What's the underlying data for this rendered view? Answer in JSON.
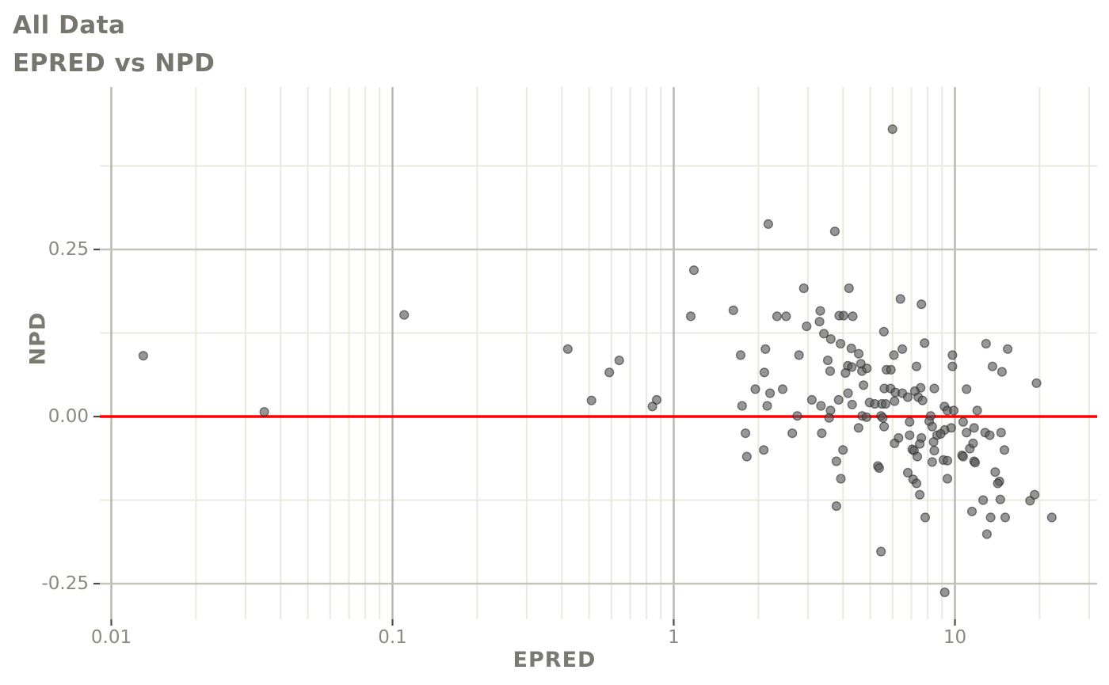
{
  "title": {
    "line1": "All Data",
    "line2": "EPRED vs NPD"
  },
  "axes": {
    "x": {
      "label": "EPRED",
      "scale": "log10",
      "ticks": [
        {
          "value": 0.01,
          "label": "0.01"
        },
        {
          "value": 0.1,
          "label": "0.1"
        },
        {
          "value": 1,
          "label": "1"
        },
        {
          "value": 10,
          "label": "10"
        }
      ],
      "minor_ticks": [
        0.02,
        0.03,
        0.04,
        0.05,
        0.06,
        0.07,
        0.08,
        0.09,
        0.2,
        0.3,
        0.4,
        0.5,
        0.6,
        0.7,
        0.8,
        0.9,
        2,
        3,
        4,
        5,
        6,
        7,
        8,
        9,
        20,
        30
      ]
    },
    "y": {
      "label": "NPD",
      "scale": "linear",
      "ticks": [
        {
          "value": 0.25,
          "label": "0.25"
        },
        {
          "value": 0.0,
          "label": "0.00"
        },
        {
          "value": -0.25,
          "label": "-0.25"
        }
      ],
      "minor_ticks": [
        0.375,
        0.125,
        -0.125
      ]
    }
  },
  "reference_line": {
    "y": 0,
    "color": "#ff0000"
  },
  "style": {
    "background": "#ffffff",
    "minor_grid_color": "#e9e9e0",
    "major_grid_color": "#c3c3ba",
    "major_vgrid_color": "#b6b6ae",
    "tick_mark_color": "#4c4b47",
    "point_fill": "#555555",
    "point_stroke": "#222222",
    "text_color": "#8a8982",
    "title_color": "#76756e"
  },
  "chart_data": {
    "type": "scatter",
    "title": "All Data",
    "subtitle": "EPRED vs NPD",
    "xlabel": "EPRED",
    "ylabel": "NPD",
    "x_scale": "log10",
    "xlim": [
      0.0091,
      32
    ],
    "ylim": [
      -0.303,
      0.493
    ],
    "grid": true,
    "legend": false,
    "reference_line_y": 0,
    "points": [
      [
        0.013,
        0.091
      ],
      [
        0.035,
        0.007
      ],
      [
        0.11,
        0.152
      ],
      [
        0.42,
        0.101
      ],
      [
        0.64,
        0.084
      ],
      [
        0.59,
        0.066
      ],
      [
        0.51,
        0.024
      ],
      [
        0.87,
        0.025
      ],
      [
        0.84,
        0.015
      ],
      [
        1.18,
        0.219
      ],
      [
        1.15,
        0.15
      ],
      [
        6.0,
        0.43
      ],
      [
        2.17,
        0.288
      ],
      [
        3.74,
        0.277
      ],
      [
        2.9,
        0.192
      ],
      [
        4.2,
        0.192
      ],
      [
        1.63,
        0.159
      ],
      [
        2.33,
        0.15
      ],
      [
        2.51,
        0.15
      ],
      [
        3.32,
        0.158
      ],
      [
        3.88,
        0.151
      ],
      [
        4.02,
        0.151
      ],
      [
        4.33,
        0.15
      ],
      [
        2.97,
        0.135
      ],
      [
        3.3,
        0.142
      ],
      [
        3.42,
        0.124
      ],
      [
        3.62,
        0.116
      ],
      [
        3.92,
        0.109
      ],
      [
        5.59,
        0.127
      ],
      [
        4.28,
        0.102
      ],
      [
        1.73,
        0.092
      ],
      [
        2.12,
        0.101
      ],
      [
        2.79,
        0.092
      ],
      [
        4.55,
        0.094
      ],
      [
        4.63,
        0.079
      ],
      [
        4.16,
        0.076
      ],
      [
        4.3,
        0.074
      ],
      [
        3.53,
        0.084
      ],
      [
        3.6,
        0.068
      ],
      [
        4.08,
        0.065
      ],
      [
        4.67,
        0.068
      ],
      [
        4.86,
        0.072
      ],
      [
        2.1,
        0.066
      ],
      [
        5.71,
        0.07
      ],
      [
        5.92,
        0.07
      ],
      [
        6.07,
        0.092
      ],
      [
        4.73,
        0.047
      ],
      [
        1.95,
        0.041
      ],
      [
        2.2,
        0.035
      ],
      [
        2.44,
        0.041
      ],
      [
        3.1,
        0.025
      ],
      [
        4.17,
        0.035
      ],
      [
        5.61,
        0.042
      ],
      [
        5.9,
        0.042
      ],
      [
        1.75,
        0.016
      ],
      [
        2.15,
        0.016
      ],
      [
        3.34,
        0.016
      ],
      [
        3.61,
        0.009
      ],
      [
        3.86,
        0.025
      ],
      [
        4.31,
        0.018
      ],
      [
        4.97,
        0.021
      ],
      [
        5.19,
        0.019
      ],
      [
        5.5,
        0.019
      ],
      [
        5.67,
        0.019
      ],
      [
        2.75,
        0.001
      ],
      [
        3.57,
        -0.002
      ],
      [
        4.68,
        0.001
      ],
      [
        4.85,
        -0.001
      ],
      [
        5.46,
        0.001
      ],
      [
        5.54,
        -0.002
      ],
      [
        1.8,
        -0.025
      ],
      [
        2.64,
        -0.025
      ],
      [
        3.36,
        -0.025
      ],
      [
        4.54,
        -0.017
      ],
      [
        5.6,
        -0.015
      ],
      [
        6.4,
        0.176
      ],
      [
        7.6,
        0.168
      ],
      [
        7.8,
        0.11
      ],
      [
        6.5,
        0.101
      ],
      [
        7.3,
        0.075
      ],
      [
        9.8,
        0.092
      ],
      [
        9.8,
        0.075
      ],
      [
        12.9,
        0.109
      ],
      [
        15.4,
        0.101
      ],
      [
        13.6,
        0.075
      ],
      [
        14.7,
        0.067
      ],
      [
        19.5,
        0.05
      ],
      [
        7.55,
        0.043
      ],
      [
        8.45,
        0.042
      ],
      [
        11.0,
        0.041
      ],
      [
        6.14,
        0.036
      ],
      [
        6.5,
        0.035
      ],
      [
        7.2,
        0.038
      ],
      [
        7.4,
        0.029
      ],
      [
        7.67,
        0.024
      ],
      [
        6.8,
        0.029
      ],
      [
        6.1,
        0.023
      ],
      [
        9.18,
        0.015
      ],
      [
        9.4,
        0.009
      ],
      [
        9.9,
        0.009
      ],
      [
        12.0,
        0.009
      ],
      [
        8.2,
        0.001
      ],
      [
        8.1,
        -0.007
      ],
      [
        6.9,
        -0.008
      ],
      [
        10.7,
        -0.008
      ],
      [
        8.3,
        -0.015
      ],
      [
        9.2,
        -0.02
      ],
      [
        8.64,
        -0.028
      ],
      [
        8.9,
        -0.026
      ],
      [
        9.7,
        -0.017
      ],
      [
        11.0,
        -0.024
      ],
      [
        11.7,
        -0.017
      ],
      [
        12.8,
        -0.024
      ],
      [
        13.3,
        -0.028
      ],
      [
        14.6,
        -0.024
      ],
      [
        6.9,
        -0.028
      ],
      [
        6.3,
        -0.032
      ],
      [
        7.6,
        -0.032
      ],
      [
        1.82,
        -0.06
      ],
      [
        2.09,
        -0.05
      ],
      [
        3.79,
        -0.067
      ],
      [
        4.0,
        -0.05
      ],
      [
        3.93,
        -0.093
      ],
      [
        5.32,
        -0.074
      ],
      [
        5.38,
        -0.077
      ],
      [
        3.79,
        -0.134
      ],
      [
        5.46,
        -0.202
      ],
      [
        6.1,
        -0.04
      ],
      [
        7.05,
        -0.049
      ],
      [
        7.15,
        -0.051
      ],
      [
        7.5,
        -0.041
      ],
      [
        8.4,
        -0.038
      ],
      [
        8.45,
        -0.051
      ],
      [
        7.35,
        -0.06
      ],
      [
        8.3,
        -0.068
      ],
      [
        9.1,
        -0.065
      ],
      [
        9.4,
        -0.066
      ],
      [
        6.8,
        -0.084
      ],
      [
        7.1,
        -0.094
      ],
      [
        7.3,
        -0.1
      ],
      [
        7.5,
        -0.117
      ],
      [
        9.4,
        -0.093
      ],
      [
        10.6,
        -0.058
      ],
      [
        10.7,
        -0.06
      ],
      [
        11.3,
        -0.048
      ],
      [
        11.6,
        -0.04
      ],
      [
        11.7,
        -0.067
      ],
      [
        11.8,
        -0.069
      ],
      [
        15.0,
        -0.05
      ],
      [
        13.9,
        -0.083
      ],
      [
        14.4,
        -0.097
      ],
      [
        14.2,
        -0.1
      ],
      [
        12.6,
        -0.125
      ],
      [
        14.5,
        -0.124
      ],
      [
        18.5,
        -0.126
      ],
      [
        19.2,
        -0.117
      ],
      [
        11.5,
        -0.142
      ],
      [
        13.4,
        -0.151
      ],
      [
        15.1,
        -0.151
      ],
      [
        22.1,
        -0.151
      ],
      [
        7.84,
        -0.151
      ],
      [
        13.0,
        -0.176
      ],
      [
        9.2,
        -0.263
      ]
    ]
  }
}
